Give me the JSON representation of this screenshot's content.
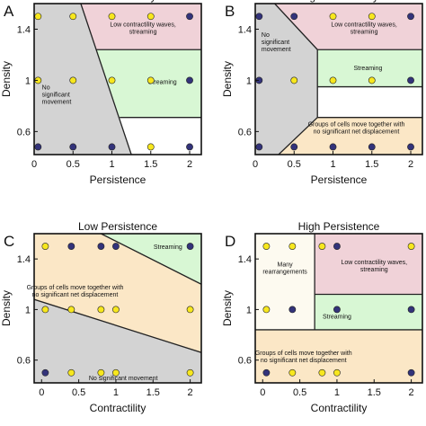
{
  "chart_data": [
    {
      "letter": "A",
      "title": "Low contractility",
      "type": "scatter",
      "xlabel": "Persistence",
      "ylabel": "Density",
      "xlim": [
        0,
        2.15
      ],
      "ylim": [
        0.42,
        1.6
      ],
      "xticks": [
        "0",
        "0.5",
        "1",
        "1.5",
        "2"
      ],
      "xtick_values": [
        0,
        0.5,
        1,
        1.5,
        2
      ],
      "yticks": [
        "0.6",
        "1",
        "1.4"
      ],
      "ytick_values": [
        0.6,
        1.0,
        1.4
      ],
      "regions": [
        {
          "label": "No significant movement",
          "label_lines": [
            "No",
            "significant",
            "movement"
          ],
          "color": "#d3d3d3",
          "polygon": [
            [
              0,
              1.6
            ],
            [
              0.6,
              1.6
            ],
            [
              1.25,
              0.42
            ],
            [
              0,
              0.42
            ]
          ],
          "label_at": [
            0.1,
            0.93
          ],
          "anchor": "start"
        },
        {
          "label": "Low contractility waves, streaming",
          "label_lines": [
            "Low contractility waves,",
            "streaming"
          ],
          "color": "#f0d2d8",
          "polygon": [
            [
              0.6,
              1.6
            ],
            [
              2.15,
              1.6
            ],
            [
              2.15,
              1.24
            ],
            [
              0.8,
              1.24
            ]
          ],
          "label_at": [
            1.4,
            1.42
          ],
          "anchor": "middle"
        },
        {
          "label": "Streaming",
          "label_lines": [
            "Streaming"
          ],
          "color": "#d8f7d4",
          "polygon": [
            [
              0.8,
              1.24
            ],
            [
              2.15,
              1.24
            ],
            [
              2.15,
              0.71
            ],
            [
              1.1,
              0.71
            ]
          ],
          "label_at": [
            1.65,
            0.97
          ],
          "anchor": "middle"
        }
      ],
      "boundaries": [
        [
          [
            0.6,
            1.6
          ],
          [
            1.25,
            0.42
          ]
        ],
        [
          [
            0.8,
            1.24
          ],
          [
            2.15,
            1.24
          ]
        ],
        [
          [
            1.1,
            0.71
          ],
          [
            2.15,
            0.71
          ]
        ]
      ],
      "series": [
        {
          "color": "#f7e71e",
          "points": [
            [
              0.05,
              1.5
            ],
            [
              0.5,
              1.5
            ],
            [
              1,
              1.5
            ],
            [
              1.5,
              1.5
            ],
            [
              0.05,
              1.0
            ],
            [
              0.5,
              1.0
            ],
            [
              1,
              1.0
            ],
            [
              1.5,
              1.0
            ],
            [
              1.5,
              0.48
            ]
          ]
        },
        {
          "color": "#33337a",
          "points": [
            [
              2,
              1.5
            ],
            [
              2,
              1.0
            ],
            [
              0.05,
              0.48
            ],
            [
              0.5,
              0.48
            ],
            [
              1,
              0.48
            ],
            [
              2,
              0.48
            ]
          ]
        }
      ]
    },
    {
      "letter": "B",
      "title": "High contractility",
      "type": "scatter",
      "xlabel": "Persistence",
      "ylabel": "Density",
      "xlim": [
        0,
        2.15
      ],
      "ylim": [
        0.42,
        1.6
      ],
      "xticks": [
        "0",
        "0.5",
        "1",
        "1.5",
        "2"
      ],
      "xtick_values": [
        0,
        0.5,
        1,
        1.5,
        2
      ],
      "yticks": [
        "0.6",
        "1",
        "1.4"
      ],
      "ytick_values": [
        0.6,
        1.0,
        1.4
      ],
      "regions": [
        {
          "label": "No significant movement",
          "label_lines": [
            "No",
            "significant",
            "movement"
          ],
          "color": "#d3d3d3",
          "polygon": [
            [
              0,
              1.6
            ],
            [
              0.25,
              1.6
            ],
            [
              0.8,
              1.24
            ],
            [
              0.8,
              0.71
            ],
            [
              0.3,
              0.42
            ],
            [
              0,
              0.42
            ]
          ],
          "label_at": [
            0.08,
            1.34
          ],
          "anchor": "start"
        },
        {
          "label": "Low contractility waves, streaming",
          "label_lines": [
            "Low contractility waves,",
            "streaming"
          ],
          "color": "#f0d2d8",
          "polygon": [
            [
              0.25,
              1.6
            ],
            [
              2.15,
              1.6
            ],
            [
              2.15,
              1.24
            ],
            [
              0.8,
              1.24
            ]
          ],
          "label_at": [
            1.4,
            1.42
          ],
          "anchor": "middle"
        },
        {
          "label": "Streaming",
          "label_lines": [
            "Streaming"
          ],
          "color": "#d8f7d4",
          "polygon": [
            [
              0.8,
              1.24
            ],
            [
              2.15,
              1.24
            ],
            [
              2.15,
              0.95
            ],
            [
              0.8,
              0.95
            ]
          ],
          "label_at": [
            1.45,
            1.08
          ],
          "anchor": "middle"
        },
        {
          "label": "Groups of cells move together with no significant net displacement",
          "label_lines": [
            "Groups of cells move together with",
            "no significant net displacement"
          ],
          "color": "#fbe7c6",
          "polygon": [
            [
              0.8,
              0.71
            ],
            [
              2.15,
              0.71
            ],
            [
              2.15,
              0.42
            ],
            [
              0.3,
              0.42
            ]
          ],
          "label_at": [
            1.3,
            0.64
          ],
          "anchor": "middle"
        }
      ],
      "boundaries": [
        [
          [
            0.25,
            1.6
          ],
          [
            0.8,
            1.24
          ]
        ],
        [
          [
            0.8,
            1.24
          ],
          [
            0.8,
            0.71
          ]
        ],
        [
          [
            0.8,
            0.71
          ],
          [
            0.3,
            0.42
          ]
        ],
        [
          [
            0.8,
            1.24
          ],
          [
            2.15,
            1.24
          ]
        ],
        [
          [
            0.8,
            0.95
          ],
          [
            2.15,
            0.95
          ]
        ],
        [
          [
            0.8,
            0.71
          ],
          [
            2.15,
            0.71
          ]
        ]
      ],
      "series": [
        {
          "color": "#f7e71e",
          "points": [
            [
              1,
              1.5
            ],
            [
              1.5,
              1.5
            ],
            [
              0.5,
              1.0
            ],
            [
              1,
              1.0
            ],
            [
              1.5,
              1.0
            ]
          ]
        },
        {
          "color": "#33337a",
          "points": [
            [
              0.05,
              1.5
            ],
            [
              0.5,
              1.5
            ],
            [
              2,
              1.5
            ],
            [
              0.05,
              1.0
            ],
            [
              2,
              1.0
            ],
            [
              0.05,
              0.48
            ],
            [
              0.5,
              0.48
            ],
            [
              1,
              0.48
            ],
            [
              1.5,
              0.48
            ],
            [
              2,
              0.48
            ]
          ]
        }
      ]
    },
    {
      "letter": "C",
      "title": "Low Persistence",
      "type": "scatter",
      "xlabel": "Contractility",
      "ylabel": "Density",
      "xlim": [
        -0.1,
        2.15
      ],
      "ylim": [
        0.42,
        1.6
      ],
      "xticks": [
        "0",
        "0.5",
        "1",
        "1.5",
        "2"
      ],
      "xtick_values": [
        0,
        0.5,
        1,
        1.5,
        2
      ],
      "yticks": [
        "0.6",
        "1",
        "1.4"
      ],
      "ytick_values": [
        0.6,
        1.0,
        1.4
      ],
      "regions": [
        {
          "label": "Streaming",
          "label_lines": [
            "Streaming"
          ],
          "color": "#d8f7d4",
          "polygon": [
            [
              0.8,
              1.6
            ],
            [
              2.15,
              1.6
            ],
            [
              2.15,
              1.2
            ]
          ],
          "label_at": [
            1.7,
            1.48
          ],
          "anchor": "middle"
        },
        {
          "label": "Groups of cells move together with no significant net displacement",
          "label_lines": [
            "Groups of cells move together with",
            "no significant net displacement"
          ],
          "color": "#fbe7c6",
          "polygon": [
            [
              -0.1,
              1.6
            ],
            [
              0.8,
              1.6
            ],
            [
              2.15,
              1.2
            ],
            [
              2.15,
              0.66
            ],
            [
              -0.1,
              1.08
            ]
          ],
          "label_at": [
            0.45,
            1.16
          ],
          "anchor": "middle"
        },
        {
          "label": "No significant movement",
          "label_lines": [
            "No significant movement"
          ],
          "color": "#d3d3d3",
          "polygon": [
            [
              -0.1,
              1.08
            ],
            [
              2.15,
              0.66
            ],
            [
              2.15,
              0.42
            ],
            [
              -0.1,
              0.42
            ]
          ],
          "label_at": [
            1.1,
            0.44
          ],
          "anchor": "middle"
        }
      ],
      "boundaries": [
        [
          [
            0.8,
            1.6
          ],
          [
            2.15,
            1.2
          ]
        ],
        [
          [
            -0.1,
            1.08
          ],
          [
            2.15,
            0.66
          ]
        ]
      ],
      "series": [
        {
          "color": "#f7e71e",
          "points": [
            [
              0.05,
              1.5
            ],
            [
              0.05,
              1.0
            ],
            [
              0.4,
              1.0
            ],
            [
              0.8,
              1.0
            ],
            [
              1,
              1.0
            ],
            [
              2,
              1.0
            ],
            [
              0.4,
              0.5
            ],
            [
              0.8,
              0.5
            ],
            [
              1,
              0.5
            ],
            [
              2,
              0.5
            ]
          ]
        },
        {
          "color": "#33337a",
          "points": [
            [
              0.4,
              1.5
            ],
            [
              0.8,
              1.5
            ],
            [
              1,
              1.5
            ],
            [
              2,
              1.5
            ],
            [
              0.05,
              0.5
            ]
          ]
        }
      ]
    },
    {
      "letter": "D",
      "title": "High Persistence",
      "type": "scatter",
      "xlabel": "Contractility",
      "ylabel": "Density",
      "xlim": [
        -0.1,
        2.15
      ],
      "ylim": [
        0.42,
        1.6
      ],
      "xticks": [
        "0",
        "0.5",
        "1",
        "1.5",
        "2"
      ],
      "xtick_values": [
        0,
        0.5,
        1,
        1.5,
        2
      ],
      "yticks": [
        "0.6",
        "1",
        "1.4"
      ],
      "ytick_values": [
        0.6,
        1.0,
        1.4
      ],
      "regions": [
        {
          "label": "Many rearrangements",
          "label_lines": [
            "Many",
            "rearrangements"
          ],
          "color": "#fdfaf0",
          "polygon": [
            [
              -0.1,
              1.6
            ],
            [
              0.7,
              1.6
            ],
            [
              0.7,
              0.84
            ],
            [
              -0.1,
              0.84
            ]
          ],
          "label_at": [
            0.3,
            1.34
          ],
          "anchor": "middle"
        },
        {
          "label": "Low contractility waves, streaming",
          "label_lines": [
            "Low contractility waves,",
            "streaming"
          ],
          "color": "#f0d2d8",
          "polygon": [
            [
              0.7,
              1.6
            ],
            [
              2.15,
              1.6
            ],
            [
              2.15,
              1.12
            ],
            [
              0.7,
              1.12
            ]
          ],
          "label_at": [
            1.5,
            1.36
          ],
          "anchor": "middle"
        },
        {
          "label": "Streaming",
          "label_lines": [
            "Streaming"
          ],
          "color": "#d8f7d4",
          "polygon": [
            [
              0.7,
              1.12
            ],
            [
              2.15,
              1.12
            ],
            [
              2.15,
              0.84
            ],
            [
              0.7,
              0.84
            ]
          ],
          "label_at": [
            1.0,
            0.93
          ],
          "anchor": "middle"
        },
        {
          "label": "Groups of cells move together with no significant net displacement",
          "label_lines": [
            "Groups of cells move together with",
            "no significant net displacement"
          ],
          "color": "#fbe7c6",
          "polygon": [
            [
              -0.1,
              0.84
            ],
            [
              2.15,
              0.84
            ],
            [
              2.15,
              0.42
            ],
            [
              -0.1,
              0.42
            ]
          ],
          "label_at": [
            0.55,
            0.64
          ],
          "anchor": "middle"
        }
      ],
      "boundaries": [
        [
          [
            0.7,
            1.6
          ],
          [
            0.7,
            0.84
          ]
        ],
        [
          [
            0.7,
            1.12
          ],
          [
            2.15,
            1.12
          ]
        ],
        [
          [
            -0.1,
            0.84
          ],
          [
            2.15,
            0.84
          ]
        ]
      ],
      "series": [
        {
          "color": "#f7e71e",
          "points": [
            [
              0.05,
              1.5
            ],
            [
              0.4,
              1.5
            ],
            [
              0.8,
              1.5
            ],
            [
              2,
              1.5
            ],
            [
              0.05,
              1.0
            ],
            [
              0.4,
              0.5
            ],
            [
              0.8,
              0.5
            ],
            [
              1,
              0.5
            ]
          ]
        },
        {
          "color": "#33337a",
          "points": [
            [
              1,
              1.5
            ],
            [
              0.4,
              1.0
            ],
            [
              1,
              1.0
            ],
            [
              2,
              1.0
            ],
            [
              0.05,
              0.5
            ],
            [
              2,
              0.5
            ]
          ]
        }
      ]
    }
  ]
}
